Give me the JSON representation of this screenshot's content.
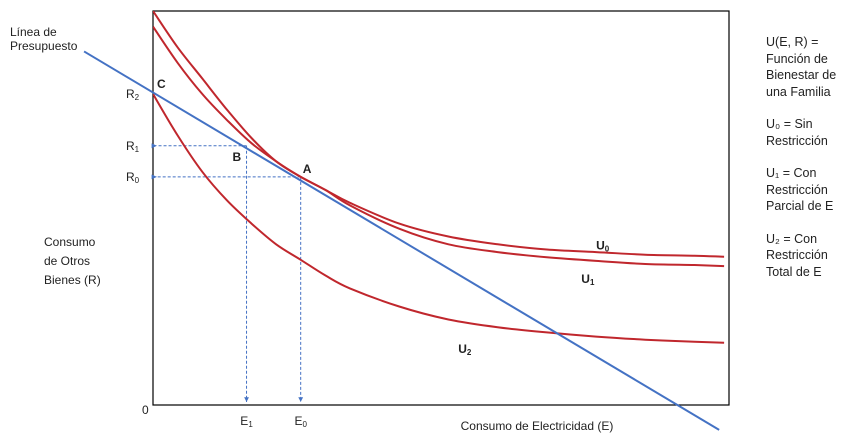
{
  "chart_data": {
    "type": "line",
    "xlabel": "Consumo de Electricidad (E)",
    "ylabel": [
      "Consumo",
      "de Otros",
      "Bienes (R)"
    ],
    "origin_label": "0",
    "budget_line_label": [
      "Línea de",
      "Presupuesto"
    ],
    "axis_ticks": {
      "x": [
        {
          "label": "E",
          "sub": "1",
          "value": 1.9
        },
        {
          "label": "E",
          "sub": "0",
          "value": 3.0
        }
      ],
      "y": [
        {
          "label": "R",
          "sub": "2",
          "value": 6.0
        },
        {
          "label": "R",
          "sub": "1",
          "value": 5.0
        },
        {
          "label": "R",
          "sub": "0",
          "value": 4.4
        }
      ]
    },
    "points": [
      {
        "label": "C",
        "x": 0.0,
        "y": 6.0
      },
      {
        "label": "B",
        "x": 1.9,
        "y": 5.0
      },
      {
        "label": "A",
        "x": 3.0,
        "y": 4.4
      }
    ],
    "budget_line": {
      "x": [
        -1.4,
        11.5
      ],
      "y": [
        6.82,
        -0.48
      ]
    },
    "series": [
      {
        "name": "U",
        "sub": "0",
        "color": "#c0272d",
        "x": [
          0.0,
          0.5,
          1.0,
          1.5,
          2.0,
          2.5,
          3.0,
          3.5,
          4.0,
          5.0,
          6.0,
          7.0,
          8.0,
          9.0,
          10.0,
          11.0,
          11.6
        ],
        "y": [
          7.6,
          6.9,
          6.3,
          5.7,
          5.15,
          4.7,
          4.4,
          4.15,
          3.9,
          3.5,
          3.25,
          3.1,
          3.0,
          2.95,
          2.9,
          2.88,
          2.86
        ]
      },
      {
        "name": "U",
        "sub": "1",
        "color": "#c0272d",
        "x": [
          0.0,
          0.5,
          1.0,
          1.5,
          2.0,
          2.5,
          3.0,
          3.5,
          4.0,
          5.0,
          6.0,
          7.0,
          8.0,
          9.0,
          10.0,
          11.0,
          11.6
        ],
        "y": [
          7.3,
          6.6,
          6.0,
          5.5,
          5.05,
          4.7,
          4.4,
          4.15,
          3.85,
          3.4,
          3.1,
          2.95,
          2.85,
          2.78,
          2.72,
          2.7,
          2.68
        ]
      },
      {
        "name": "U",
        "sub": "2",
        "color": "#c0272d",
        "x": [
          0.0,
          0.5,
          1.0,
          1.5,
          2.0,
          2.5,
          3.0,
          3.5,
          4.0,
          5.0,
          6.0,
          7.0,
          8.0,
          9.0,
          10.0,
          11.0,
          11.6
        ],
        "y": [
          6.0,
          5.2,
          4.5,
          3.95,
          3.5,
          3.1,
          2.8,
          2.5,
          2.25,
          1.9,
          1.65,
          1.5,
          1.4,
          1.32,
          1.26,
          1.22,
          1.2
        ]
      }
    ],
    "curve_labels": [
      {
        "name": "U",
        "sub": "0",
        "x": 9.0,
        "y": 3.0
      },
      {
        "name": "U",
        "sub": "1",
        "x": 8.7,
        "y": 2.35
      },
      {
        "name": "U",
        "sub": "2",
        "x": 6.2,
        "y": 1.0
      }
    ],
    "xlim": [
      0,
      11.7
    ],
    "ylim": [
      0,
      7.6
    ],
    "grid": false,
    "colors": {
      "utility": "#c0272d",
      "budget": "#4472c4",
      "guides": "#4472c4",
      "axes": "#000000"
    }
  },
  "legend": [
    {
      "lines": [
        "U(E, R) =",
        "Función de",
        "Bienestar de",
        "una Familia"
      ]
    },
    {
      "lines": [
        "U₀ = Sin",
        "Restricción"
      ]
    },
    {
      "lines": [
        "U₁ = Con",
        "Restricción",
        "Parcial de E"
      ]
    },
    {
      "lines": [
        "U₂ = Con",
        "Restricción",
        "Total de E"
      ]
    }
  ]
}
